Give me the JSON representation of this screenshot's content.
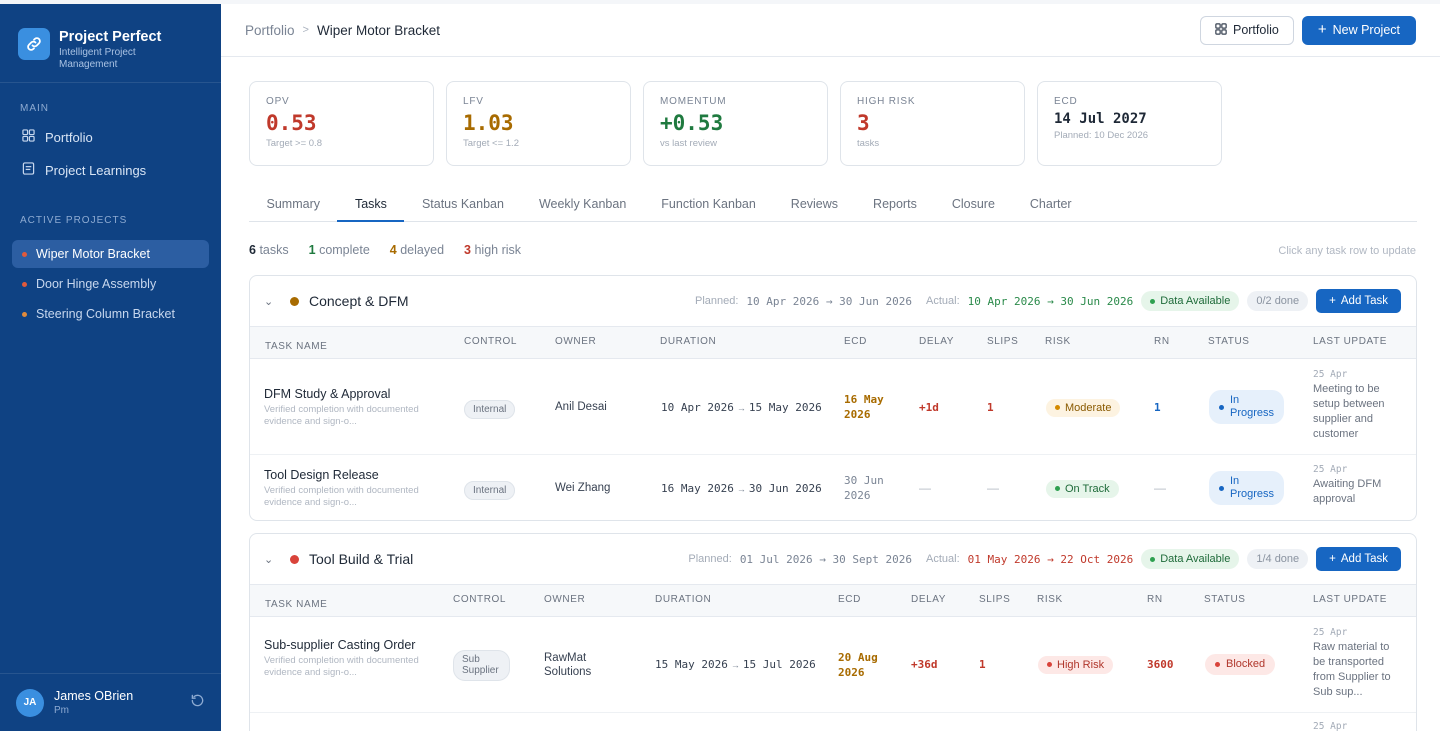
{
  "app": {
    "title": "Project Perfect",
    "subtitle": "Intelligent Project Management"
  },
  "sidebar": {
    "main_label": "MAIN",
    "nav": [
      {
        "label": "Portfolio",
        "icon": "grid-icon"
      },
      {
        "label": "Project Learnings",
        "icon": "note-icon"
      }
    ],
    "active_label": "ACTIVE PROJECTS",
    "projects": [
      "Wiper Motor Bracket",
      "Door Hinge Assembly",
      "Steering Column Bracket"
    ]
  },
  "user": {
    "initials": "JA",
    "name": "James OBrien",
    "role": "Pm"
  },
  "breadcrumb": {
    "root": "Portfolio",
    "sep": ">",
    "current": "Wiper Motor Bracket"
  },
  "toolbar": {
    "portfolio_label": "Portfolio",
    "new_project_label": "New Project"
  },
  "kpis": [
    {
      "label": "OPV",
      "value": "0.53",
      "sub": "Target >= 0.8",
      "color": "#c0392b"
    },
    {
      "label": "LFV",
      "value": "1.03",
      "sub": "Target <= 1.2",
      "color": "#a86b00"
    },
    {
      "label": "MOMENTUM",
      "value": "+0.53",
      "sub": "vs last review",
      "color": "#1f7a3f"
    },
    {
      "label": "HIGH RISK",
      "value": "3",
      "sub": "tasks",
      "color": "#c0392b"
    },
    {
      "label": "ECD",
      "value": "14 Jul 2027",
      "sub": "Planned: 10 Dec 2026",
      "color": "#1f2937"
    }
  ],
  "tabs": [
    "Summary",
    "Tasks",
    "Status Kanban",
    "Weekly Kanban",
    "Function Kanban",
    "Reviews",
    "Reports",
    "Closure",
    "Charter"
  ],
  "counts": {
    "tasks_n": "6",
    "tasks_l": "tasks",
    "complete_n": "1",
    "complete_l": "complete",
    "delayed_n": "4",
    "delayed_l": "delayed",
    "risk_n": "3",
    "risk_l": "high risk"
  },
  "hint": "Click any task row to update",
  "columns": [
    "TASK NAME",
    "CONTROL",
    "OWNER",
    "DURATION",
    "ECD",
    "DELAY",
    "SLIPS",
    "RISK",
    "RN",
    "STATUS",
    "LAST UPDATE"
  ],
  "phases": [
    {
      "name": "Concept & DFM",
      "dot_color": "#a86b00",
      "planned_label": "Planned:",
      "planned": "10 Apr 2026 → 30 Jun 2026",
      "actual_label": "Actual:",
      "actual": "10 Apr 2026 → 30 Jun 2026",
      "data_badge": "Data Available",
      "done": "0/2 done",
      "add_label": "Add Task",
      "tasks": [
        {
          "name": "DFM Study & Approval",
          "desc": "Verified completion with documented evidence and sign-o...",
          "control": "Internal",
          "owner": "Anil Desai",
          "start": "10 Apr 2026",
          "end": "15 May 2026",
          "ecd1": "16 May",
          "ecd2": "2026",
          "delay": "+1d",
          "slips": "1",
          "risk": "Moderate",
          "rn": "1",
          "status1": "In",
          "status2": "Progress",
          "lu_date": "25 Apr",
          "lu_text": "Meeting to be setup between supplier and customer"
        },
        {
          "name": "Tool Design Release",
          "desc": "Verified completion with documented evidence and sign-o...",
          "control": "Internal",
          "owner": "Wei Zhang",
          "start": "16 May 2026",
          "end": "30 Jun 2026",
          "ecd1": "30 Jun",
          "ecd2": "2026",
          "delay": "—",
          "slips": "—",
          "risk": "On Track",
          "rn": "—",
          "status1": "In",
          "status2": "Progress",
          "lu_date": "25 Apr",
          "lu_text": "Awaiting DFM approval"
        }
      ]
    },
    {
      "name": "Tool Build & Trial",
      "dot_color": "#d9433a",
      "planned_label": "Planned:",
      "planned": "01 Jul 2026 → 30 Sept 2026",
      "actual_label": "Actual:",
      "actual": "01 May 2026 → 22 Oct 2026",
      "data_badge": "Data Available",
      "done": "1/4 done",
      "add_label": "Add Task",
      "tasks": [
        {
          "name": "Sub-supplier Casting Order",
          "desc": "Verified completion with documented evidence and sign-o...",
          "control1": "Sub",
          "control2": "Supplier",
          "owner1": "RawMat",
          "owner2": "Solutions",
          "start": "15 May 2026",
          "end": "15 Jul 2026",
          "ecd1": "20 Aug",
          "ecd2": "2026",
          "delay": "+36d",
          "slips": "1",
          "risk": "High Risk",
          "rn": "3600",
          "status": "Blocked",
          "lu_date": "25 Apr",
          "lu_text": "Raw material to be transported from Supplier to Sub sup..."
        }
      ],
      "next_row_date": "25 Apr"
    }
  ]
}
